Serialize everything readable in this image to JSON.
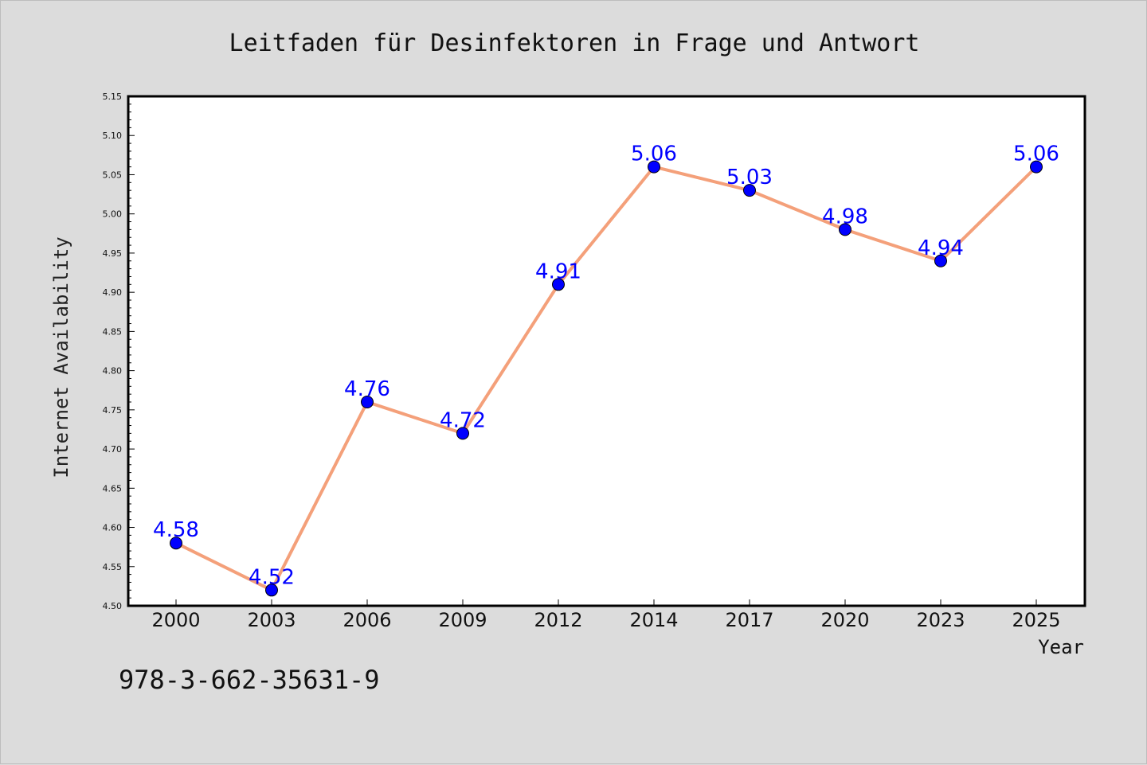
{
  "chart_data": {
    "type": "line",
    "title": "Leitfaden für Desinfektoren in Frage und Antwort",
    "xlabel": "Year",
    "ylabel": "Internet Availability",
    "categories": [
      "2000",
      "2003",
      "2006",
      "2009",
      "2012",
      "2014",
      "2017",
      "2020",
      "2023",
      "2025"
    ],
    "series": [
      {
        "values": [
          4.58,
          4.52,
          4.76,
          4.72,
          4.91,
          5.06,
          5.03,
          4.98,
          4.94,
          5.06
        ],
        "labels": [
          "4.58",
          "4.52",
          "4.76",
          "4.72",
          "4.91",
          "5.06",
          "5.03",
          "4.98",
          "4.94",
          "5.06"
        ],
        "line_color": "#f4a07a",
        "marker_color": "#0000ff"
      }
    ],
    "ylim": [
      4.5,
      5.15
    ],
    "yticks": [
      "4.50",
      "4.55",
      "4.60",
      "4.65",
      "4.70",
      "4.75",
      "4.80",
      "4.85",
      "4.90",
      "4.95",
      "5.00",
      "5.05",
      "5.10",
      "5.15"
    ],
    "grid": false,
    "legend": "none",
    "label_color": "#0000ff",
    "background": "#dcdcdc",
    "plot_background": "#ffffff"
  },
  "footer": {
    "isbn": "978-3-662-35631-9"
  }
}
